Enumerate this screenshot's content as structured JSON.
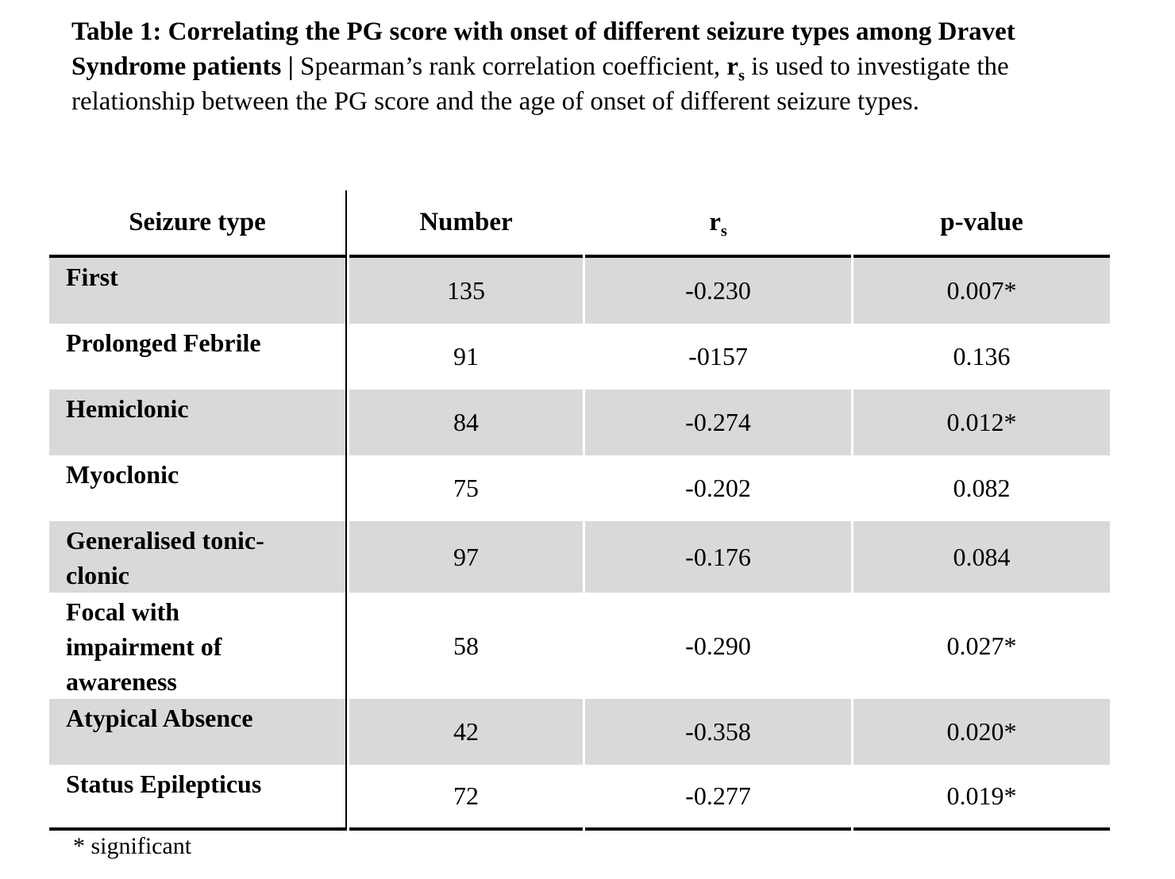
{
  "caption": {
    "bold_intro": "Table 1: Correlating the PG score with onset of different seizure types among Dravet Syndrome patients | ",
    "regular_1": "Spearman’s rank correlation coefficient, ",
    "stat_symbol": "r",
    "stat_subscript": "s",
    "regular_2": " is used to investigate the relationship between the PG score and the age of onset of different seizure types."
  },
  "table": {
    "headers": {
      "seizure_type": "Seizure type",
      "number": "Number",
      "rs_symbol": "r",
      "rs_subscript": "s",
      "p_value": "p-value"
    },
    "rows": [
      {
        "seizure_type": "First",
        "number": "135",
        "rs": "-0.230",
        "p_value": "0.007*",
        "shaded": true
      },
      {
        "seizure_type": "Prolonged Febrile",
        "number": "91",
        "rs": "-0157",
        "p_value": "0.136",
        "shaded": false
      },
      {
        "seizure_type": "Hemiclonic",
        "number": "84",
        "rs": "-0.274",
        "p_value": "0.012*",
        "shaded": true
      },
      {
        "seizure_type": "Myoclonic",
        "number": "75",
        "rs": "-0.202",
        "p_value": "0.082",
        "shaded": false
      },
      {
        "seizure_type": "Generalised tonic-\nclonic",
        "number": "97",
        "rs": "-0.176",
        "p_value": "0.084",
        "shaded": true
      },
      {
        "seizure_type": "Focal with\nimpairment of\nawareness",
        "number": "58",
        "rs": "-0.290",
        "p_value": "0.027*",
        "shaded": false
      },
      {
        "seizure_type": "Atypical Absence",
        "number": "42",
        "rs": "-0.358",
        "p_value": "0.020*",
        "shaded": true
      },
      {
        "seizure_type": "Status Epilepticus",
        "number": "72",
        "rs": "-0.277",
        "p_value": "0.019*",
        "shaded": false
      }
    ]
  },
  "footnote": {
    "text": "* significant"
  },
  "colors": {
    "row_shading": "#d9d9d9",
    "border": "#000000",
    "text": "#000000",
    "page_background": "#ffffff"
  }
}
